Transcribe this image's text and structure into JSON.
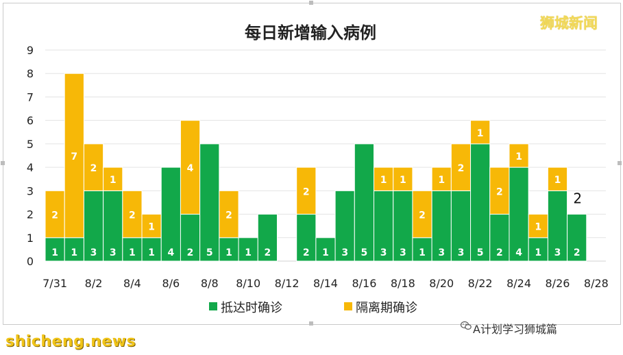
{
  "watermark": "狮城新闻",
  "credit": "A计划学习狮城篇",
  "source": "shicheng.news",
  "colors": {
    "green": "#12a84a",
    "yellow": "#f7b807",
    "grid": "#e3e3e3",
    "axis": "#d0d0d0"
  },
  "icons": {
    "credit_icon": "wechat-icon"
  },
  "chart_data": {
    "type": "bar",
    "stacked": true,
    "title": "每日新增输入病例",
    "ylim": [
      0,
      9
    ],
    "yticks": [
      "0",
      "1",
      "2",
      "3",
      "4",
      "5",
      "6",
      "7",
      "8",
      "9"
    ],
    "xtick_labels": [
      "7/31",
      "8/2",
      "8/4",
      "8/6",
      "8/8",
      "8/10",
      "8/12",
      "8/14",
      "8/16",
      "8/18",
      "8/20",
      "8/22",
      "8/24",
      "8/26",
      "8/28"
    ],
    "grid": true,
    "legend_position": "bottom",
    "categories": [
      "7/31",
      "8/1",
      "8/2",
      "8/3",
      "8/4",
      "8/5",
      "8/6",
      "8/7",
      "8/8",
      "8/9",
      "8/10",
      "8/11",
      "8/12",
      "8/13",
      "8/14",
      "8/15",
      "8/16",
      "8/17",
      "8/18",
      "8/19",
      "8/20",
      "8/21",
      "8/22",
      "8/23",
      "8/24",
      "8/25",
      "8/26",
      "8/27",
      "8/28"
    ],
    "series": [
      {
        "name": "抵达时确诊",
        "color": "#12a84a",
        "values": [
          1,
          1,
          3,
          3,
          1,
          1,
          4,
          2,
          5,
          1,
          1,
          2,
          0,
          2,
          1,
          3,
          5,
          3,
          3,
          1,
          3,
          3,
          5,
          2,
          4,
          1,
          3,
          2,
          0
        ]
      },
      {
        "name": "隔离期确诊",
        "color": "#f7b807",
        "values": [
          2,
          7,
          2,
          1,
          2,
          1,
          0,
          4,
          0,
          2,
          0,
          0,
          0,
          2,
          0,
          0,
          0,
          1,
          1,
          2,
          1,
          2,
          1,
          2,
          1,
          1,
          1,
          0,
          0
        ]
      }
    ],
    "annotations": [
      {
        "category": "8/27",
        "text": "2"
      }
    ]
  }
}
